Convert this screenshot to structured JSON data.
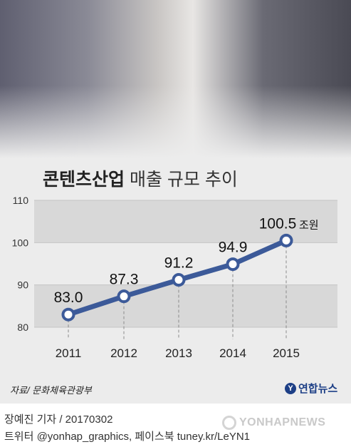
{
  "header": {
    "title_bold": "콘텐츠산업",
    "title_rest": " 매출 규모 추이"
  },
  "chart_data": {
    "type": "line",
    "title": "콘텐츠산업 매출 규모 추이",
    "categories": [
      "2011",
      "2012",
      "2013",
      "2014",
      "2015"
    ],
    "values": [
      83.0,
      87.3,
      91.2,
      94.9,
      100.5
    ],
    "value_labels": [
      "83.0",
      "87.3",
      "91.2",
      "94.9",
      "100.5"
    ],
    "unit_suffix": "조원",
    "ylim": [
      80,
      110
    ],
    "yticks": [
      80,
      90,
      100,
      110
    ],
    "ytick_labels": [
      "80",
      "90",
      "100",
      "110"
    ],
    "line_color": "#3c5a99",
    "band_color": "#d8d8d8"
  },
  "footer": {
    "source": "자료/ 문화체육관광부",
    "logo_text": "연합뉴스",
    "credit": "장예진 기자 / 20170302",
    "social": "트위터 @yonhap_graphics, 페이스북 tuney.kr/LeYN1",
    "watermark": "YONHAPNEWS"
  }
}
